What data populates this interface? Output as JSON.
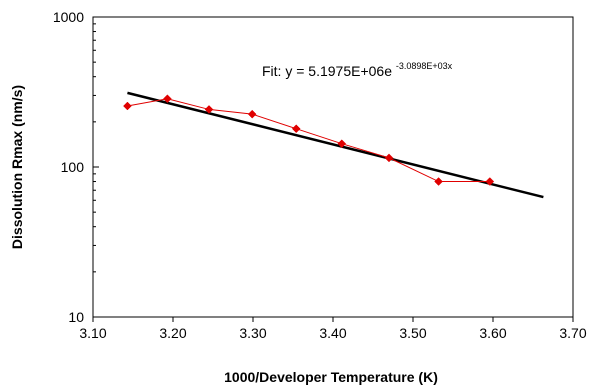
{
  "chart_data": {
    "type": "scatter",
    "xlabel": "1000/Developer Temperature (K)",
    "ylabel": "Dissolution Rmax (nm/s)",
    "xlim": [
      3.1,
      3.7
    ],
    "ylim": [
      10,
      1000
    ],
    "y_scale": "log",
    "x_ticks": [
      "3.10",
      "3.20",
      "3.30",
      "3.40",
      "3.50",
      "3.60",
      "3.70"
    ],
    "y_ticks": [
      "10",
      "100",
      "1000"
    ],
    "grid": false,
    "series": [
      {
        "kind": "data",
        "color": "#e00000",
        "marker": "diamond",
        "x": [
          3.143,
          3.193,
          3.245,
          3.299,
          3.354,
          3.411,
          3.47,
          3.532,
          3.596
        ],
        "y": [
          255,
          285,
          242,
          225,
          180,
          143,
          115,
          80,
          80
        ]
      },
      {
        "kind": "fit",
        "color": "#000000",
        "x": [
          3.143,
          3.663
        ],
        "y": [
          312,
          63
        ]
      }
    ],
    "annotation": {
      "prefix": "Fit:  y = 5.1975E+06e",
      "exponent": "-3.0898E+03x"
    }
  }
}
